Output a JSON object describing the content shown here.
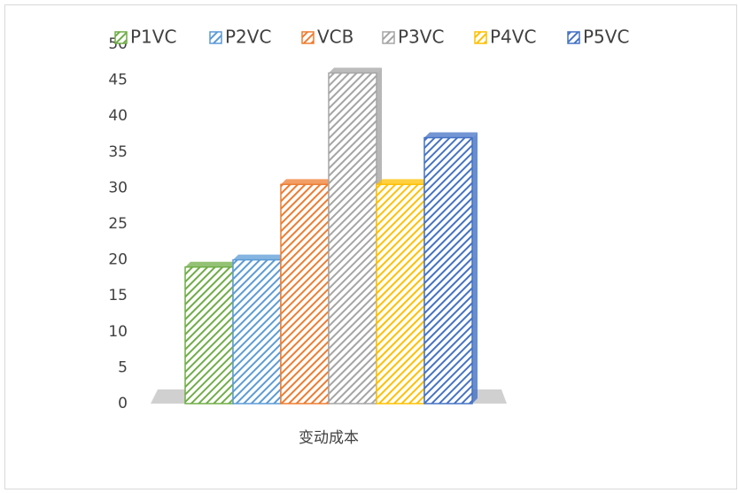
{
  "chart_data": {
    "type": "bar3d",
    "categories": [
      "变动成本"
    ],
    "series": [
      {
        "name": "P1VC",
        "color": "#70ad47",
        "values": [
          19
        ]
      },
      {
        "name": "P2VC",
        "color": "#5b9bd5",
        "values": [
          20
        ]
      },
      {
        "name": "VCB",
        "color": "#ed7d31",
        "values": [
          30.5
        ]
      },
      {
        "name": "P3VC",
        "color": "#a5a5a5",
        "values": [
          46
        ]
      },
      {
        "name": "P4VC",
        "color": "#ffc000",
        "values": [
          30.5
        ]
      },
      {
        "name": "P5VC",
        "color": "#4472c4",
        "values": [
          37
        ]
      }
    ],
    "ylim": [
      0,
      50
    ],
    "yticks": [
      0,
      5,
      10,
      15,
      20,
      25,
      30,
      35,
      40,
      45,
      50
    ],
    "legend": "top"
  }
}
